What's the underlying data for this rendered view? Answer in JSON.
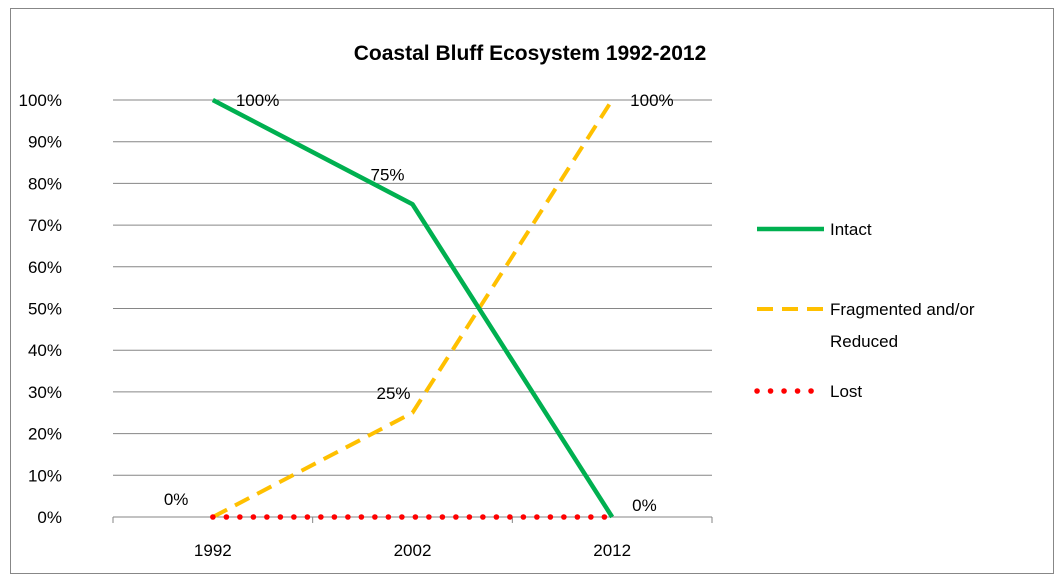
{
  "chart_data": {
    "type": "line",
    "title": "Coastal Bluff Ecosystem 1992-2012",
    "xlabel": "",
    "ylabel": "",
    "categories": [
      "1992",
      "2002",
      "2012"
    ],
    "ylim": [
      0,
      100
    ],
    "y_ticks": [
      0,
      10,
      20,
      30,
      40,
      50,
      60,
      70,
      80,
      90,
      100
    ],
    "y_tick_labels": [
      "0%",
      "10%",
      "20%",
      "30%",
      "40%",
      "50%",
      "60%",
      "70%",
      "80%",
      "90%",
      "100%"
    ],
    "grid": true,
    "legend_position": "right",
    "series": [
      {
        "name": "Intact",
        "values": [
          100,
          75,
          0
        ],
        "color": "#00B050",
        "line_style": "solid",
        "data_labels": [
          "100%",
          "75%",
          "0%"
        ]
      },
      {
        "name": "Fragmented and/or Reduced",
        "legend_lines": [
          "Fragmented and/or",
          "Reduced"
        ],
        "values": [
          0,
          25,
          100
        ],
        "color": "#FFC000",
        "line_style": "dashed",
        "data_labels": [
          "0%",
          "25%",
          "100%"
        ]
      },
      {
        "name": "Lost",
        "values": [
          0,
          0,
          0
        ],
        "color": "#FF0000",
        "line_style": "dotted",
        "data_labels": []
      }
    ]
  }
}
